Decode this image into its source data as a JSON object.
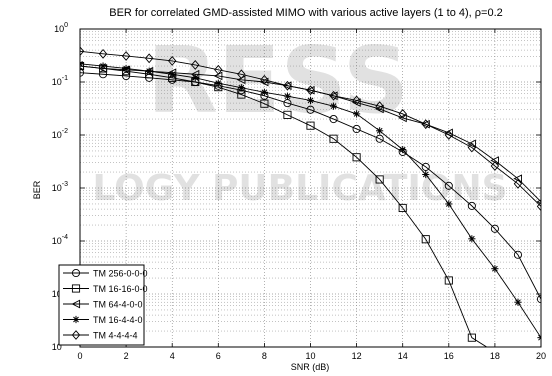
{
  "watermark": {
    "top": "RESS",
    "middle": "LOGY PUBLICATIONS"
  },
  "chart_data": {
    "type": "line",
    "title": "BER for correlated GMD-assisted MIMO with various active layers (1 to 4), ρ=0.2",
    "xlabel": "SNR (dB)",
    "ylabel": "BER",
    "xlim": [
      0,
      20
    ],
    "ylim_exponent": [
      -6,
      0
    ],
    "yscale": "log",
    "grid": true,
    "legend_position": "bottom-left",
    "x_ticks": [
      0,
      2,
      4,
      6,
      8,
      10,
      12,
      14,
      16,
      18,
      20
    ],
    "y_ticks_exponent": [
      0,
      -1,
      -2,
      -3,
      -4,
      -5,
      -6
    ],
    "x": [
      0,
      1,
      2,
      3,
      4,
      5,
      6,
      7,
      8,
      9,
      10,
      11,
      12,
      13,
      14,
      15,
      16,
      17,
      18,
      19,
      20
    ],
    "series": [
      {
        "name": "TM 256-0-0-0",
        "marker": "circle",
        "values": [
          0.15,
          0.14,
          0.13,
          0.12,
          0.11,
          0.1,
          0.085,
          0.07,
          0.055,
          0.04,
          0.03,
          0.02,
          0.013,
          0.0085,
          0.0048,
          0.0025,
          0.0011,
          0.00046,
          0.00017,
          5.5e-05,
          8e-06
        ]
      },
      {
        "name": "TM 16-16-0-0",
        "marker": "square",
        "values": [
          0.2,
          0.18,
          0.16,
          0.14,
          0.12,
          0.1,
          0.08,
          0.058,
          0.039,
          0.024,
          0.015,
          0.0085,
          0.0038,
          0.00145,
          0.00042,
          0.000108,
          1.8e-05,
          1.5e-06,
          8e-07,
          8e-07,
          8e-07
        ]
      },
      {
        "name": "TM 64-4-0-0",
        "marker": "triangle-left",
        "values": [
          0.2,
          0.18,
          0.17,
          0.16,
          0.15,
          0.14,
          0.13,
          0.11,
          0.1,
          0.085,
          0.07,
          0.055,
          0.041,
          0.031,
          0.021,
          0.016,
          0.011,
          0.0068,
          0.0033,
          0.0015,
          0.00055
        ]
      },
      {
        "name": "TM 16-4-4-0",
        "marker": "star",
        "values": [
          0.22,
          0.2,
          0.18,
          0.16,
          0.14,
          0.12,
          0.095,
          0.078,
          0.064,
          0.054,
          0.045,
          0.035,
          0.025,
          0.012,
          0.0053,
          0.0018,
          0.0005,
          0.00011,
          3e-05,
          7e-06,
          1.5e-06
        ]
      },
      {
        "name": "TM 4-4-4-4",
        "marker": "diamond",
        "values": [
          0.38,
          0.34,
          0.31,
          0.28,
          0.25,
          0.21,
          0.17,
          0.14,
          0.11,
          0.085,
          0.07,
          0.055,
          0.045,
          0.035,
          0.025,
          0.016,
          0.01,
          0.0058,
          0.0026,
          0.0012,
          0.00045
        ]
      }
    ]
  }
}
